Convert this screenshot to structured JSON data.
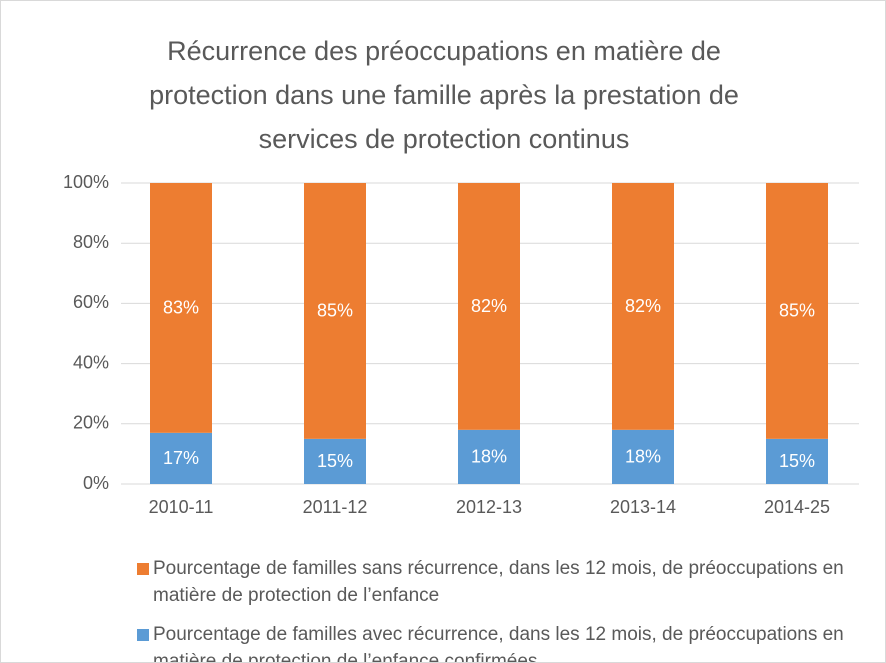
{
  "chart_data": {
    "type": "stacked_bar",
    "title": "Récurrence des préoccupations en matière de protection dans une famille après la prestation de services de protection continus",
    "categories": [
      "2010-11",
      "2011-12",
      "2012-13",
      "2013-14",
      "2014-25"
    ],
    "series": [
      {
        "name": "Pourcentage de familles avec récurrence, dans les 12 mois, de préoccupations en matière de protection de l’enfance confirmées",
        "color": "#5B9BD5",
        "values": [
          17,
          15,
          18,
          18,
          15
        ],
        "value_labels": [
          "17%",
          "15%",
          "18%",
          "18%",
          "15%"
        ]
      },
      {
        "name": "Pourcentage de familles sans récurrence, dans les 12 mois, de préoccupations en matière de protection de l’enfance",
        "color": "#ED7D31",
        "values": [
          83,
          85,
          82,
          82,
          85
        ],
        "value_labels": [
          "83%",
          "85%",
          "82%",
          "82%",
          "85%"
        ]
      }
    ],
    "ylim": [
      0,
      100
    ],
    "yticks": [
      {
        "value": 0,
        "label": "0%"
      },
      {
        "value": 20,
        "label": "20%"
      },
      {
        "value": 40,
        "label": "40%"
      },
      {
        "value": 60,
        "label": "60%"
      },
      {
        "value": 80,
        "label": "80%"
      },
      {
        "value": 100,
        "label": "100%"
      }
    ],
    "grid": true
  }
}
